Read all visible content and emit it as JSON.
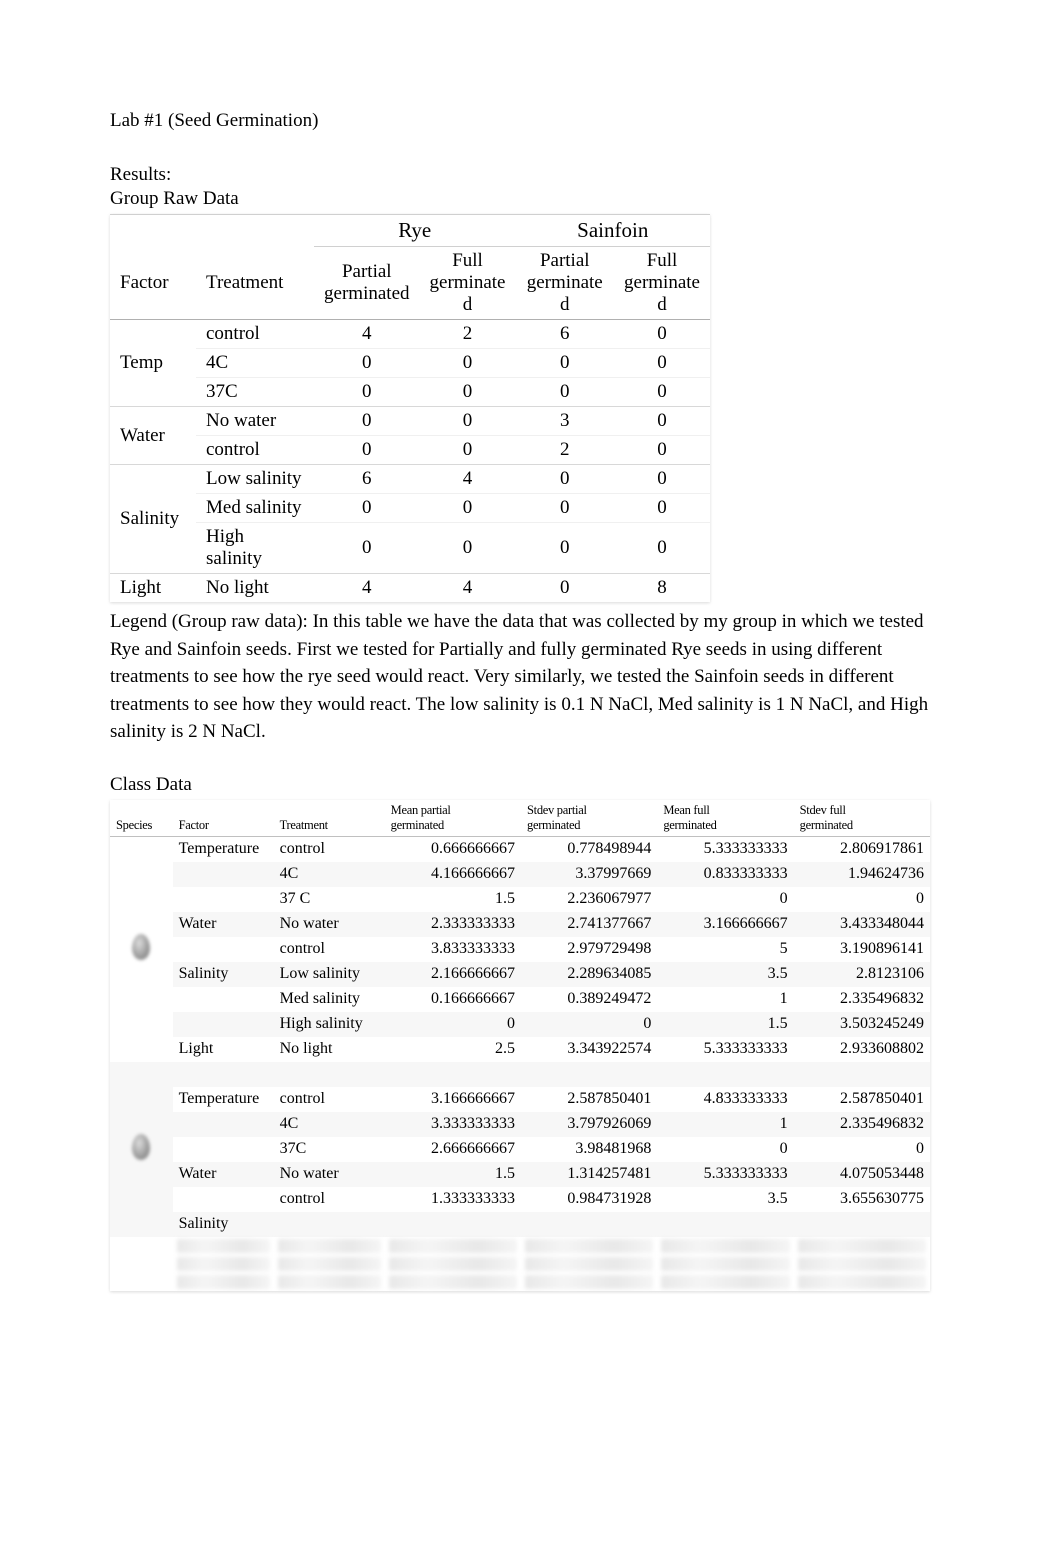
{
  "title": "Lab #1 (Seed Germination)",
  "results_label": "Results:",
  "group_label": "Group Raw Data",
  "group_table": {
    "species": [
      "Rye",
      "Sainfoin"
    ],
    "factor_header": "Factor",
    "treatment_header": "Treatment",
    "sub_headers": [
      "Partial germinated",
      "Full germinated",
      "Partial germinated",
      "Full germinated"
    ],
    "sub_headers_lines": [
      [
        "Partial",
        "germinated"
      ],
      [
        "Full",
        "germinate",
        "d"
      ],
      [
        "Partial",
        "germinate",
        "d"
      ],
      [
        "Full",
        "germinate",
        "d"
      ]
    ],
    "rows": [
      {
        "factor": "Temp",
        "treatment": "control",
        "vals": [
          "4",
          "2",
          "6",
          "0"
        ]
      },
      {
        "factor": "",
        "treatment": "4C",
        "vals": [
          "0",
          "0",
          "0",
          "0"
        ]
      },
      {
        "factor": "",
        "treatment": "37C",
        "vals": [
          "0",
          "0",
          "0",
          "0"
        ]
      },
      {
        "factor": "Water",
        "treatment": "No water",
        "vals": [
          "0",
          "0",
          "3",
          "0"
        ]
      },
      {
        "factor": "",
        "treatment": "control",
        "vals": [
          "0",
          "0",
          "2",
          "0"
        ]
      },
      {
        "factor": "Salinity",
        "treatment": "Low salinity",
        "vals": [
          "6",
          "4",
          "0",
          "0"
        ]
      },
      {
        "factor": "",
        "treatment": "Med salinity",
        "vals": [
          "0",
          "0",
          "0",
          "0"
        ]
      },
      {
        "factor": "",
        "treatment": "High salinity",
        "vals": [
          "0",
          "0",
          "0",
          "0"
        ]
      },
      {
        "factor": "Light",
        "treatment": "No light",
        "vals": [
          "4",
          "4",
          "0",
          "8"
        ]
      }
    ]
  },
  "legend": "Legend (Group raw data): In this table we have the data that was collected by my group in which we tested Rye and Sainfoin seeds. First we tested for Partially and fully germinated Rye seeds in using different treatments to see how the rye seed would react. Very similarly, we tested the Sainfoin seeds in different treatments to see how they would react. The low salinity is 0.1 N NaCl, Med salinity is 1 N NaCl, and High salinity is 2 N NaCl.",
  "class_label": "Class Data",
  "class_table": {
    "headers": {
      "species": "Species",
      "factor": "Factor",
      "treatment": "Treatment",
      "mean_partial": [
        "Mean partial",
        "germinated"
      ],
      "stdev_partial": [
        "Stdev partial",
        "germinated"
      ],
      "mean_full": [
        "Mean full",
        "germinated"
      ],
      "stdev_full": [
        "Stdev full",
        "germinated"
      ]
    },
    "species_blocks": [
      {
        "rows": [
          {
            "factor": "Temperature",
            "treatment": "control",
            "mp": "0.666666667",
            "sp": "0.778498944",
            "mf": "5.333333333",
            "sf": "2.806917861"
          },
          {
            "factor": "",
            "treatment": "4C",
            "mp": "4.166666667",
            "sp": "3.37997669",
            "mf": "0.833333333",
            "sf": "1.94624736"
          },
          {
            "factor": "",
            "treatment": "37 C",
            "mp": "1.5",
            "sp": "2.236067977",
            "mf": "0",
            "sf": "0"
          },
          {
            "factor": "Water",
            "treatment": "No water",
            "mp": "2.333333333",
            "sp": "2.741377667",
            "mf": "3.166666667",
            "sf": "3.433348044"
          },
          {
            "factor": "",
            "treatment": "control",
            "mp": "3.833333333",
            "sp": "2.979729498",
            "mf": "5",
            "sf": "3.190896141"
          },
          {
            "factor": "Salinity",
            "treatment": "Low salinity",
            "mp": "2.166666667",
            "sp": "2.289634085",
            "mf": "3.5",
            "sf": "2.8123106"
          },
          {
            "factor": "",
            "treatment": "Med salinity",
            "mp": "0.166666667",
            "sp": "0.389249472",
            "mf": "1",
            "sf": "2.335496832"
          },
          {
            "factor": "",
            "treatment": "High salinity",
            "mp": "0",
            "sp": "0",
            "mf": "1.5",
            "sf": "3.503245249"
          },
          {
            "factor": "Light",
            "treatment": "No light",
            "mp": "2.5",
            "sp": "3.343922574",
            "mf": "5.333333333",
            "sf": "2.933608802"
          }
        ]
      },
      {
        "rows": [
          {
            "factor": "",
            "treatment": "",
            "mp": "",
            "sp": "",
            "mf": "",
            "sf": ""
          },
          {
            "factor": "Temperature",
            "treatment": "control",
            "mp": "3.166666667",
            "sp": "2.587850401",
            "mf": "4.833333333",
            "sf": "2.587850401"
          },
          {
            "factor": "",
            "treatment": "4C",
            "mp": "3.333333333",
            "sp": "3.797926069",
            "mf": "1",
            "sf": "2.335496832"
          },
          {
            "factor": "",
            "treatment": "37C",
            "mp": "2.666666667",
            "sp": "3.98481968",
            "mf": "0",
            "sf": "0"
          },
          {
            "factor": "Water",
            "treatment": "No water",
            "mp": "1.5",
            "sp": "1.314257481",
            "mf": "5.333333333",
            "sf": "4.075053448"
          },
          {
            "factor": "",
            "treatment": "control",
            "mp": "1.333333333",
            "sp": "0.984731928",
            "mf": "3.5",
            "sf": "3.655630775"
          },
          {
            "factor": "Salinity",
            "treatment": "",
            "mp": "",
            "sp": "",
            "mf": "",
            "sf": ""
          }
        ]
      }
    ]
  }
}
